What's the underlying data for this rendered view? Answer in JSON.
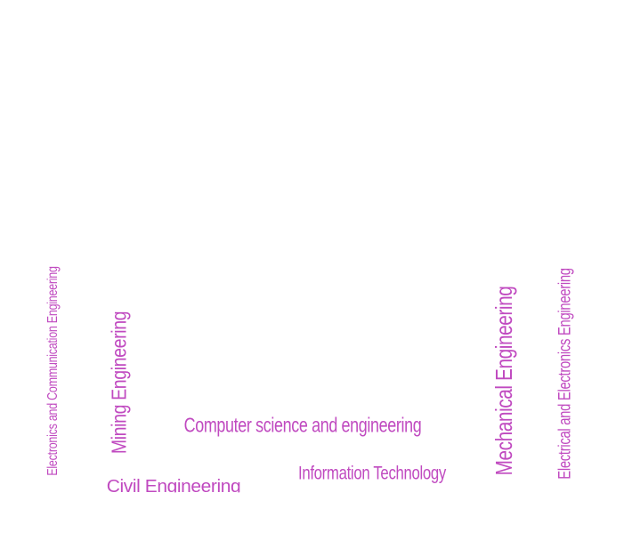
{
  "word_cloud": {
    "text_color": "#c04ac0",
    "words": [
      {
        "id": "ece",
        "text": "Electronics and Communication Engineering",
        "orientation": "vertical"
      },
      {
        "id": "mining",
        "text": "Mining Engineering",
        "orientation": "vertical"
      },
      {
        "id": "civil",
        "text": "Civil Engineering",
        "orientation": "horizontal"
      },
      {
        "id": "cse",
        "text": "Computer science and engineering",
        "orientation": "horizontal"
      },
      {
        "id": "it",
        "text": "Information Technology",
        "orientation": "horizontal"
      },
      {
        "id": "mech",
        "text": "Mechanical Engineering",
        "orientation": "vertical"
      },
      {
        "id": "eee",
        "text": "Electrical and Electronics Engineering",
        "orientation": "vertical"
      }
    ]
  }
}
